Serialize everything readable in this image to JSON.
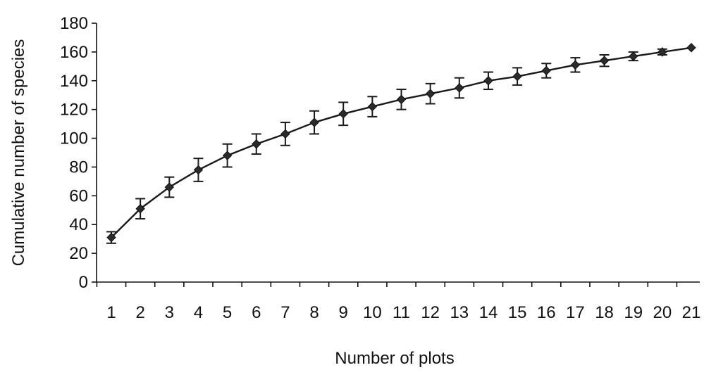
{
  "chart_data": {
    "type": "line",
    "title": "",
    "xlabel": "Number of plots",
    "ylabel": "Cumulative number of species",
    "x": [
      1,
      2,
      3,
      4,
      5,
      6,
      7,
      8,
      9,
      10,
      11,
      12,
      13,
      14,
      15,
      16,
      17,
      18,
      19,
      20,
      21
    ],
    "xticks": [
      "1",
      "2",
      "3",
      "4",
      "5",
      "6",
      "7",
      "8",
      "9",
      "10",
      "11",
      "12",
      "13",
      "14",
      "15",
      "16",
      "17",
      "18",
      "19",
      "20",
      "21"
    ],
    "yticks": [
      "0",
      "20",
      "40",
      "60",
      "80",
      "100",
      "120",
      "140",
      "160",
      "180"
    ],
    "ylim": [
      0,
      180
    ],
    "series": [
      {
        "values": [
          31,
          51,
          66,
          78,
          88,
          96,
          103,
          111,
          117,
          122,
          127,
          131,
          135,
          140,
          143,
          147,
          151,
          154,
          157,
          160,
          163
        ],
        "error": [
          4,
          7,
          7,
          8,
          8,
          7,
          8,
          8,
          8,
          7,
          7,
          7,
          7,
          6,
          6,
          5,
          5,
          4,
          3,
          2,
          0
        ]
      }
    ],
    "grid": false,
    "marker": "diamond",
    "colors": {
      "line": "#1a1a1a",
      "marker": "#2b2b2b",
      "axis": "#111111"
    }
  }
}
